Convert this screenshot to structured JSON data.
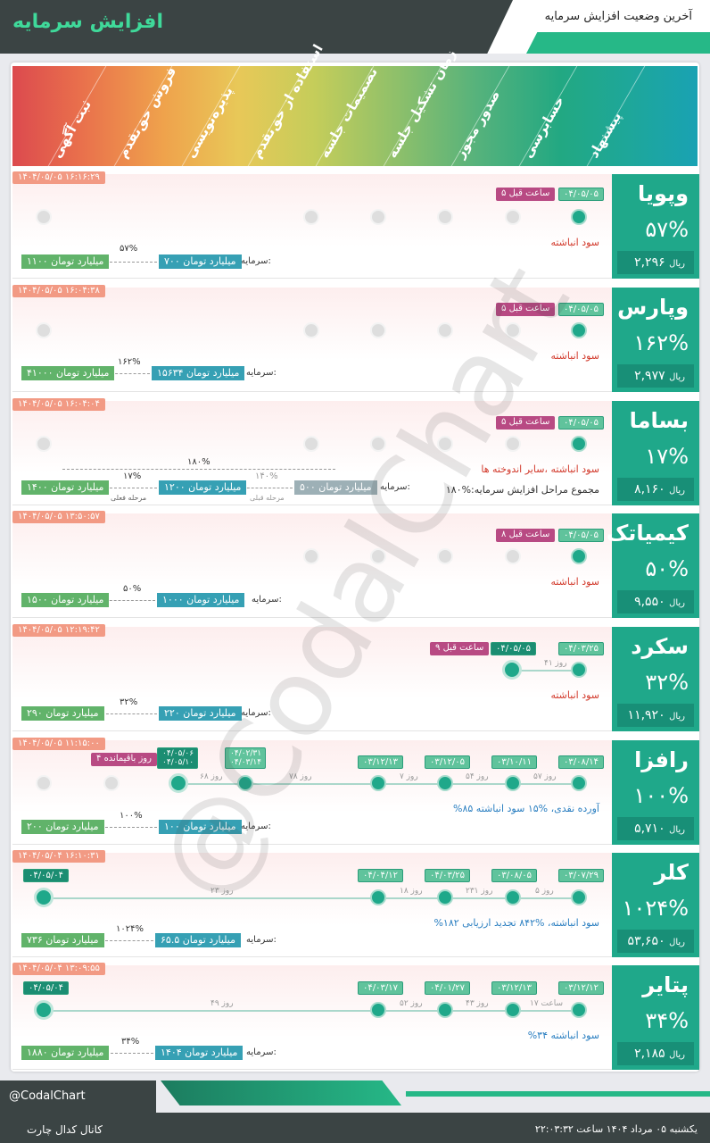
{
  "header": {
    "title": "افزایش سرمایه",
    "subtitle": "آخرین وضعیت افزایش سرمایه"
  },
  "stages": [
    "پیشنهاد",
    "حسابرسی",
    "صدور مجوز",
    "زمان تشکیل جلسه",
    "تصمیمات جلسه",
    "استفاده از حق‌تقدم",
    "پذیره‌نویسی",
    "فروش حق‌تقدم",
    "ثبت آگهی"
  ],
  "rows": [
    {
      "name": "وپویا",
      "pct": "۵۷%",
      "price": "۲,۲۹۶",
      "unit": "ریال",
      "ts": "۱۴۰۴/۰۵/۰۵ ۱۶:۱۶:۲۹",
      "date1": "۰۴/۰۵/۰۵",
      "ago": "۵ ساعت قبل",
      "desc": "سود انباشته",
      "caplabel": "سرمایه:",
      "cap_from": "۷۰۰ میلیارد تومان",
      "cap_to": "۱۱۰۰ میلیارد تومان",
      "incr": "۵۷%"
    },
    {
      "name": "وپارس",
      "pct": "۱۶۲%",
      "price": "۲,۹۷۷",
      "unit": "ریال",
      "ts": "۱۴۰۴/۰۵/۰۵ ۱۶:۰۴:۳۸",
      "date1": "۰۴/۰۵/۰۵",
      "ago": "۵ ساعت قبل",
      "desc": "سود انباشته",
      "caplabel": "سرمایه:",
      "cap_from": "۱۵۶۳۴ میلیارد تومان",
      "cap_to": "۴۱۰۰۰ میلیارد تومان",
      "incr": "۱۶۲%"
    },
    {
      "name": "بساما",
      "pct": "۱۷%",
      "price": "۸,۱۶۰",
      "unit": "ریال",
      "ts": "۱۴۰۴/۰۵/۰۵ ۱۶:۰۴:۰۴",
      "date1": "۰۴/۰۵/۰۵",
      "ago": "۵ ساعت قبل",
      "desc": "سود انباشته ،سایر اندوخته ها",
      "desc2": "مجموع مراحل افزایش سرمایه:%۱۸۰",
      "caplabel": "سرمایه:",
      "cap_prev": "۵۰۰ میلیارد تومان",
      "cap_from": "۱۲۰۰ میلیارد تومان",
      "cap_to": "۱۴۰۰ میلیارد تومان",
      "incr": "۱۷%",
      "incr_prev": "۱۴۰%",
      "incr_total": "۱۸۰%",
      "prev_label": "مرحله قبلی",
      "cur_label": "مرحله فعلی"
    },
    {
      "name": "کیمیاتک",
      "pct": "۵۰%",
      "price": "۹,۵۵۰",
      "unit": "ریال",
      "ts": "۱۴۰۴/۰۵/۰۵ ۱۳:۵۰:۵۷",
      "date1": "۰۴/۰۵/۰۵",
      "ago": "۸ ساعت قبل",
      "desc": "سود انباشته",
      "caplabel": "سرمایه:",
      "cap_from": "۱۰۰۰ میلیارد تومان",
      "cap_to": "۱۵۰۰ میلیارد تومان",
      "incr": "۵۰%"
    },
    {
      "name": "سکرد",
      "pct": "۳۲%",
      "price": "۱۱,۹۲۰",
      "unit": "ریال",
      "ts": "۱۴۰۴/۰۵/۰۵ ۱۲:۱۹:۴۲",
      "date1": "۰۴/۰۳/۲۵",
      "date2": "۰۴/۰۵/۰۵",
      "ago": "۹ ساعت قبل",
      "days1": "۴۱ روز",
      "desc": "سود انباشته",
      "caplabel": "سرمایه:",
      "cap_from": "۲۲۰ میلیارد تومان",
      "cap_to": "۲۹۰ میلیارد تومان",
      "incr": "۳۲%"
    },
    {
      "name": "رافزا",
      "pct": "۱۰۰%",
      "price": "۵,۷۱۰",
      "unit": "ریال",
      "ts": "۱۴۰۴/۰۵/۰۵ ۱۱:۱۵:۰۰",
      "d": [
        "۰۳/۰۸/۱۴",
        "۰۳/۱۰/۱۱",
        "۰۳/۱۲/۰۵",
        "۰۳/۱۲/۱۳",
        "۰۴/۰۲/۳۱ ۰۴/۰۳/۱۴",
        "۰۴/۰۵/۰۶ ۰۴/۰۵/۱۰"
      ],
      "dy": [
        "۵۷ روز",
        "۵۴ روز",
        "۷ روز",
        "۷۸ روز",
        "۶۸ روز"
      ],
      "remain": "۴ روز باقیمانده",
      "desc": "%۸۵ آورده نقدی، %۱۵ سود انباشته",
      "caplabel": "سرمایه:",
      "cap_from": "۱۰۰ میلیارد تومان",
      "cap_to": "۲۰۰ میلیارد تومان",
      "incr": "۱۰۰%"
    },
    {
      "name": "کلر",
      "pct": "۱۰۲۴%",
      "price": "۵۳,۶۵۰",
      "unit": "ریال",
      "ts": "۱۴۰۴/۰۵/۰۴ ۱۶:۱۰:۳۱",
      "d": [
        "۰۳/۰۷/۲۹",
        "۰۳/۰۸/۰۵",
        "۰۴/۰۳/۲۵",
        "۰۴/۰۴/۱۲",
        "۰۴/۰۵/۰۴"
      ],
      "dy": [
        "۵ روز",
        "۲۳۱ روز",
        "۱۸ روز",
        "۲۳ روز"
      ],
      "desc": "%۱۸۲ سود انباشته، %۸۴۲ تجدید ارزیابی",
      "caplabel": "سرمایه:",
      "cap_from": "۶۵.۵ میلیارد تومان",
      "cap_to": "۷۳۶ میلیارد تومان",
      "incr": "۱۰۲۴%"
    },
    {
      "name": "پتایر",
      "pct": "۳۴%",
      "price": "۲,۱۸۵",
      "unit": "ریال",
      "ts": "۱۴۰۴/۰۵/۰۴ ۱۳:۰۹:۵۵",
      "d": [
        "۰۳/۱۲/۱۲",
        "۰۳/۱۲/۱۳",
        "۰۴/۰۱/۲۷",
        "۰۴/۰۳/۱۷",
        "۰۴/۰۵/۰۴"
      ],
      "dy": [
        "۱۷ ساعت",
        "۴۳ روز",
        "۵۲ روز",
        "۴۹ روز"
      ],
      "desc": "%۳۴ سود انباشته",
      "caplabel": "سرمایه:",
      "cap_from": "۱۴۰۴ میلیارد تومان",
      "cap_to": "۱۸۸۰ میلیارد تومان",
      "incr": "۳۴%"
    }
  ],
  "watermark": "@CodalChart",
  "footer": {
    "handle": "@CodalChart",
    "channel": "کانال کدال چارت",
    "datetime": "یکشنبه ۰۵ مرداد ۱۴۰۴ ساعت ۲۲:۰۳:۳۲"
  }
}
